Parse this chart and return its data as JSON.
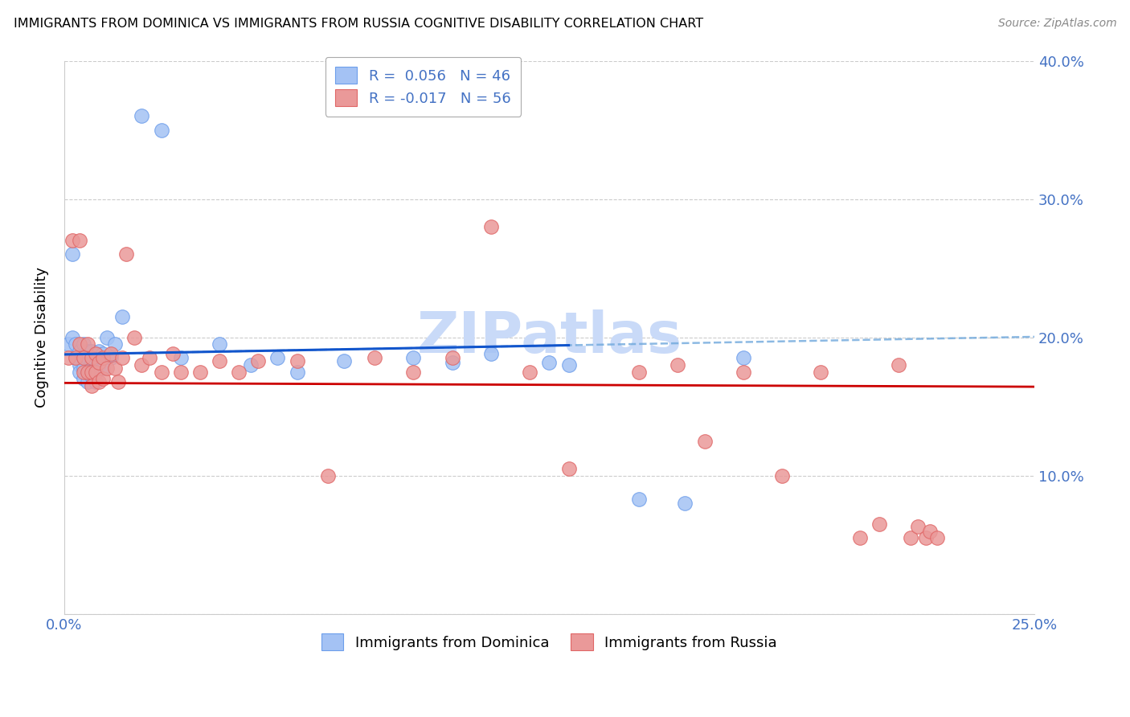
{
  "title": "IMMIGRANTS FROM DOMINICA VS IMMIGRANTS FROM RUSSIA COGNITIVE DISABILITY CORRELATION CHART",
  "source": "Source: ZipAtlas.com",
  "ylabel": "Cognitive Disability",
  "xlim": [
    0.0,
    0.25
  ],
  "ylim": [
    0.0,
    0.4
  ],
  "dominica_color": "#a4c2f4",
  "dominica_edge_color": "#6d9eeb",
  "russia_color": "#ea9999",
  "russia_edge_color": "#e06666",
  "dominica_line_color": "#1155cc",
  "russia_line_color": "#cc0000",
  "dominica_dash_color": "#6fa8dc",
  "dominica_R": 0.056,
  "dominica_N": 46,
  "russia_R": -0.017,
  "russia_N": 56,
  "watermark": "ZIPatlas",
  "watermark_color": "#c9daf8",
  "tick_color": "#4472c4",
  "dominica_x": [
    0.001,
    0.002,
    0.002,
    0.003,
    0.003,
    0.004,
    0.004,
    0.004,
    0.005,
    0.005,
    0.005,
    0.005,
    0.006,
    0.006,
    0.006,
    0.006,
    0.007,
    0.007,
    0.007,
    0.008,
    0.008,
    0.008,
    0.009,
    0.009,
    0.01,
    0.01,
    0.011,
    0.012,
    0.013,
    0.015,
    0.02,
    0.025,
    0.03,
    0.04,
    0.048,
    0.055,
    0.06,
    0.072,
    0.09,
    0.1,
    0.11,
    0.125,
    0.13,
    0.148,
    0.16,
    0.175
  ],
  "dominica_y": [
    0.195,
    0.26,
    0.2,
    0.195,
    0.185,
    0.19,
    0.18,
    0.175,
    0.195,
    0.185,
    0.178,
    0.17,
    0.19,
    0.185,
    0.175,
    0.168,
    0.19,
    0.182,
    0.172,
    0.188,
    0.178,
    0.168,
    0.19,
    0.18,
    0.188,
    0.178,
    0.2,
    0.185,
    0.195,
    0.215,
    0.36,
    0.35,
    0.185,
    0.195,
    0.18,
    0.185,
    0.175,
    0.183,
    0.185,
    0.182,
    0.188,
    0.182,
    0.18,
    0.083,
    0.08,
    0.185
  ],
  "russia_x": [
    0.001,
    0.002,
    0.003,
    0.004,
    0.004,
    0.005,
    0.005,
    0.006,
    0.006,
    0.007,
    0.007,
    0.007,
    0.008,
    0.008,
    0.009,
    0.009,
    0.01,
    0.01,
    0.011,
    0.012,
    0.013,
    0.014,
    0.015,
    0.016,
    0.018,
    0.02,
    0.022,
    0.025,
    0.028,
    0.03,
    0.035,
    0.04,
    0.045,
    0.05,
    0.06,
    0.068,
    0.08,
    0.09,
    0.1,
    0.11,
    0.12,
    0.13,
    0.148,
    0.158,
    0.165,
    0.175,
    0.185,
    0.195,
    0.205,
    0.21,
    0.215,
    0.218,
    0.22,
    0.222,
    0.223,
    0.225
  ],
  "russia_y": [
    0.185,
    0.27,
    0.185,
    0.27,
    0.195,
    0.185,
    0.175,
    0.195,
    0.175,
    0.185,
    0.175,
    0.165,
    0.188,
    0.175,
    0.182,
    0.168,
    0.185,
    0.17,
    0.178,
    0.188,
    0.178,
    0.168,
    0.185,
    0.26,
    0.2,
    0.18,
    0.185,
    0.175,
    0.188,
    0.175,
    0.175,
    0.183,
    0.175,
    0.183,
    0.183,
    0.1,
    0.185,
    0.175,
    0.185,
    0.28,
    0.175,
    0.105,
    0.175,
    0.18,
    0.125,
    0.175,
    0.1,
    0.175,
    0.055,
    0.065,
    0.18,
    0.055,
    0.063,
    0.055,
    0.06,
    0.055
  ]
}
